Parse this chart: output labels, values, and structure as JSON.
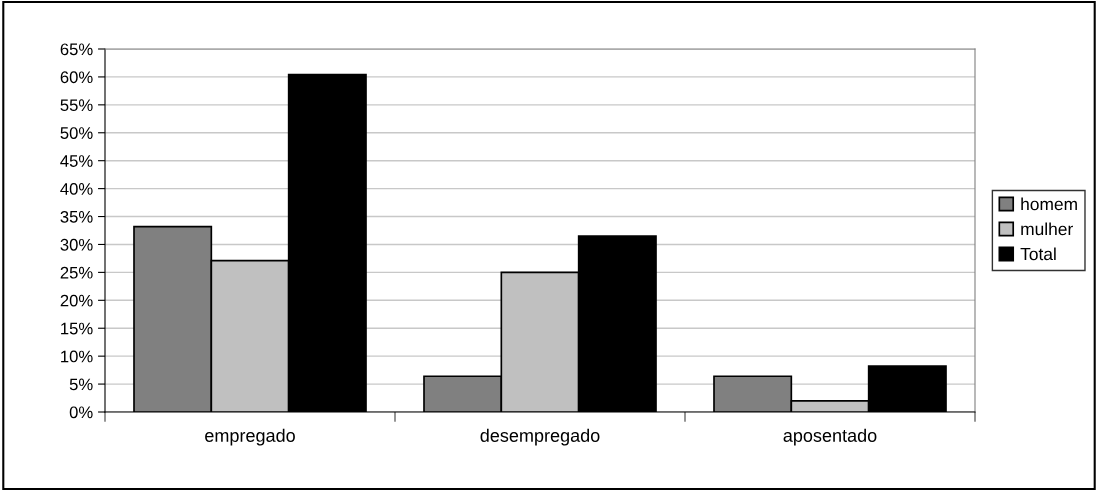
{
  "chart_data": {
    "type": "bar",
    "categories": [
      "empregado",
      "desempregado",
      "aposentado"
    ],
    "series": [
      {
        "name": "homem",
        "color": "#808080",
        "values": [
          33.2,
          6.4,
          6.4
        ]
      },
      {
        "name": "mulher",
        "color": "#c0c0c0",
        "values": [
          27.1,
          25.0,
          2.0
        ]
      },
      {
        "name": "Total",
        "color": "#000000",
        "values": [
          60.4,
          31.5,
          8.2
        ]
      }
    ],
    "ylim": [
      0,
      65
    ],
    "yticks": [
      {
        "value": 0,
        "label": "0%"
      },
      {
        "value": 5,
        "label": "5%"
      },
      {
        "value": 10,
        "label": "10%"
      },
      {
        "value": 15,
        "label": "15%"
      },
      {
        "value": 20,
        "label": "20%"
      },
      {
        "value": 25,
        "label": "25%"
      },
      {
        "value": 30,
        "label": "30%"
      },
      {
        "value": 35,
        "label": "35%"
      },
      {
        "value": 40,
        "label": "40%"
      },
      {
        "value": 45,
        "label": "45%"
      },
      {
        "value": 50,
        "label": "50%"
      },
      {
        "value": 55,
        "label": "55%"
      },
      {
        "value": 60,
        "label": "60%"
      },
      {
        "value": 65,
        "label": "65%"
      }
    ],
    "grid": "y",
    "legend": "right"
  }
}
